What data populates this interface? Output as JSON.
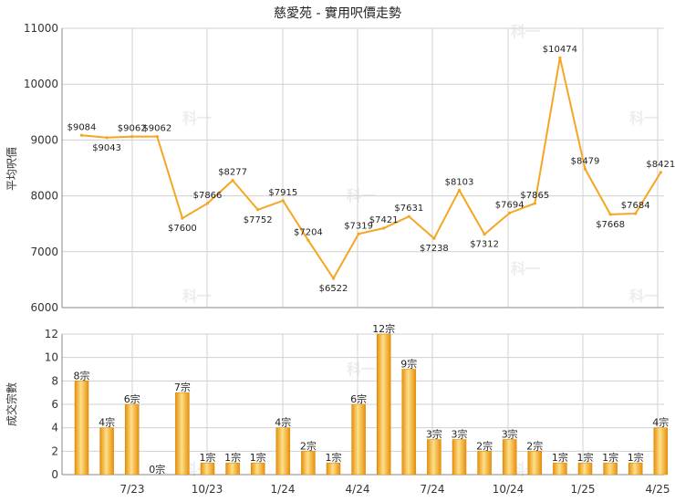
{
  "chart_data": [
    {
      "type": "line",
      "title": "慈愛苑 - 實用呎價走勢",
      "ylabel": "平均呎價",
      "ylim": [
        6000,
        11000
      ],
      "yticks": [
        6000,
        7000,
        8000,
        9000,
        10000,
        11000
      ],
      "x_tick_labels": [
        "7/23",
        "10/23",
        "1/24",
        "4/24",
        "7/24",
        "10/24",
        "1/25",
        "4/25"
      ],
      "series": [
        {
          "values": [
            9084,
            9043,
            9062,
            9062,
            7600,
            7866,
            8277,
            7752,
            7915,
            7204,
            6522,
            7319,
            7421,
            7631,
            7238,
            8103,
            7312,
            7694,
            7865,
            10474,
            8479,
            7668,
            7684,
            8421
          ],
          "labels": [
            "$9084",
            "$9043",
            "$9062",
            "$9062",
            "$7600",
            "$7866",
            "$8277",
            "$7752",
            "$7915",
            "$7204",
            "$6522",
            "$7319",
            "$7421",
            "$7631",
            "$7238",
            "$8103",
            "$7312",
            "$7694",
            "$7865",
            "$10474",
            "$8479",
            "$7668",
            "$7684",
            "$8421"
          ],
          "color": "#f5a623"
        }
      ],
      "grid": true
    },
    {
      "type": "bar",
      "ylabel": "成交宗數",
      "ylim": [
        0,
        12
      ],
      "yticks": [
        0,
        2,
        4,
        6,
        8,
        10,
        12
      ],
      "x_tick_labels": [
        "7/23",
        "10/23",
        "1/24",
        "4/24",
        "7/24",
        "10/24",
        "1/25",
        "4/25"
      ],
      "series": [
        {
          "values": [
            8,
            4,
            6,
            0,
            7,
            1,
            1,
            1,
            4,
            2,
            1,
            6,
            12,
            9,
            3,
            3,
            2,
            3,
            2,
            1,
            1,
            1,
            1,
            4
          ],
          "labels": [
            "8宗",
            "4宗",
            "6宗",
            "0宗",
            "7宗",
            "1宗",
            "1宗",
            "1宗",
            "4宗",
            "2宗",
            "1宗",
            "6宗",
            "12宗",
            "9宗",
            "3宗",
            "3宗",
            "2宗",
            "3宗",
            "2宗",
            "1宗",
            "1宗",
            "1宗",
            "1宗",
            "4宗"
          ],
          "color": "#f5a623"
        }
      ],
      "grid": true
    }
  ],
  "watermark_text": "科一"
}
